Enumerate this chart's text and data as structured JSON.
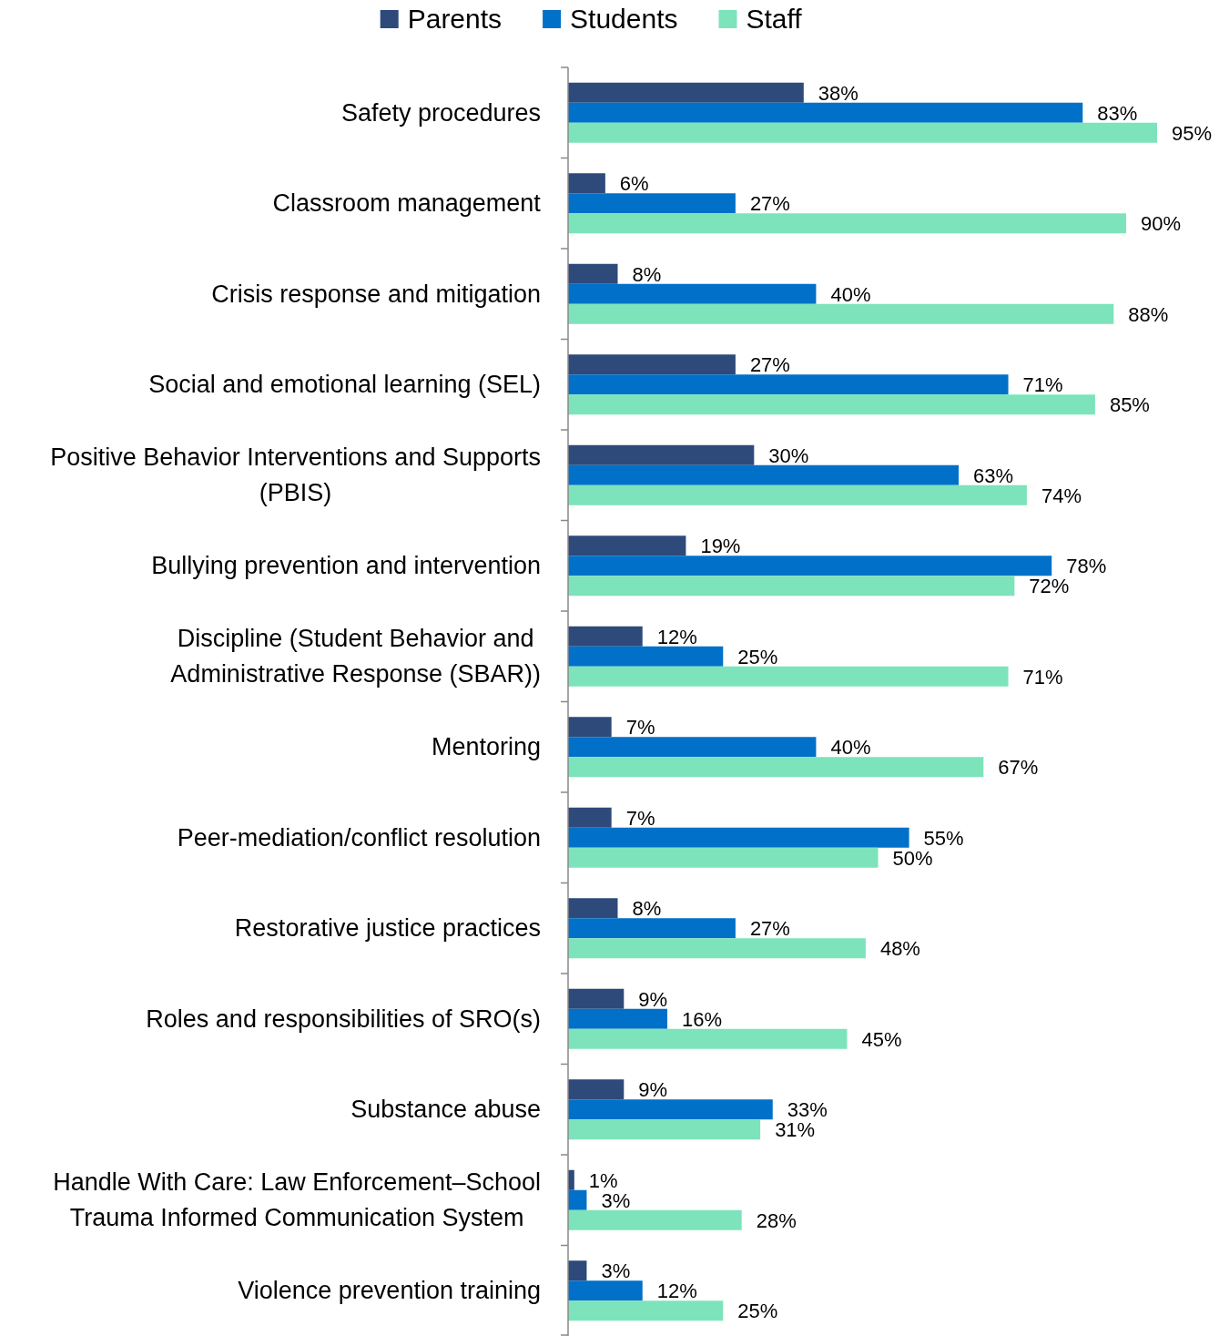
{
  "chart_data": {
    "type": "bar",
    "orientation": "horizontal",
    "legend": "top",
    "categories": [
      "Safety procedures",
      "Classroom management",
      "Crisis response and mitigation",
      "Social and emotional learning (SEL)",
      "Positive Behavior Interventions and Supports (PBIS)",
      "Bullying prevention and intervention",
      "Discipline (Student Behavior and Administrative Response (SBAR))",
      "Mentoring",
      "Peer-mediation/conflict resolution",
      "Restorative justice practices",
      "Roles and responsibilities of SRO(s)",
      "Substance abuse",
      "Handle With Care: Law Enforcement–School Trauma Informed Communication System",
      "Violence prevention training"
    ],
    "series": [
      {
        "name": "Parents",
        "color": "#2e4a7a",
        "values": [
          38,
          6,
          8,
          27,
          30,
          19,
          12,
          7,
          7,
          8,
          9,
          9,
          1,
          3
        ],
        "value_labels": [
          "38%",
          "6%",
          "8%",
          "27%",
          "30%",
          "19%",
          "12%",
          "7%",
          "7%",
          "8%",
          "9%",
          "9%",
          "1%",
          "3%"
        ]
      },
      {
        "name": "Students",
        "color": "#0070c8",
        "values": [
          83,
          27,
          40,
          71,
          63,
          78,
          25,
          40,
          55,
          27,
          16,
          33,
          3,
          12
        ],
        "value_labels": [
          "83%",
          "27%",
          "40%",
          "71%",
          "63%",
          "78%",
          "25%",
          "40%",
          "55%",
          "27%",
          "16%",
          "33%",
          "3%",
          "12%"
        ]
      },
      {
        "name": "Staff",
        "color": "#7de3bb",
        "values": [
          95,
          90,
          88,
          85,
          74,
          72,
          71,
          67,
          50,
          48,
          45,
          31,
          28,
          25
        ],
        "value_labels": [
          "95%",
          "90%",
          "88%",
          "85%",
          "74%",
          "72%",
          "71%",
          "67%",
          "50%",
          "48%",
          "45%",
          "31%",
          "28%",
          "25%"
        ]
      }
    ]
  }
}
